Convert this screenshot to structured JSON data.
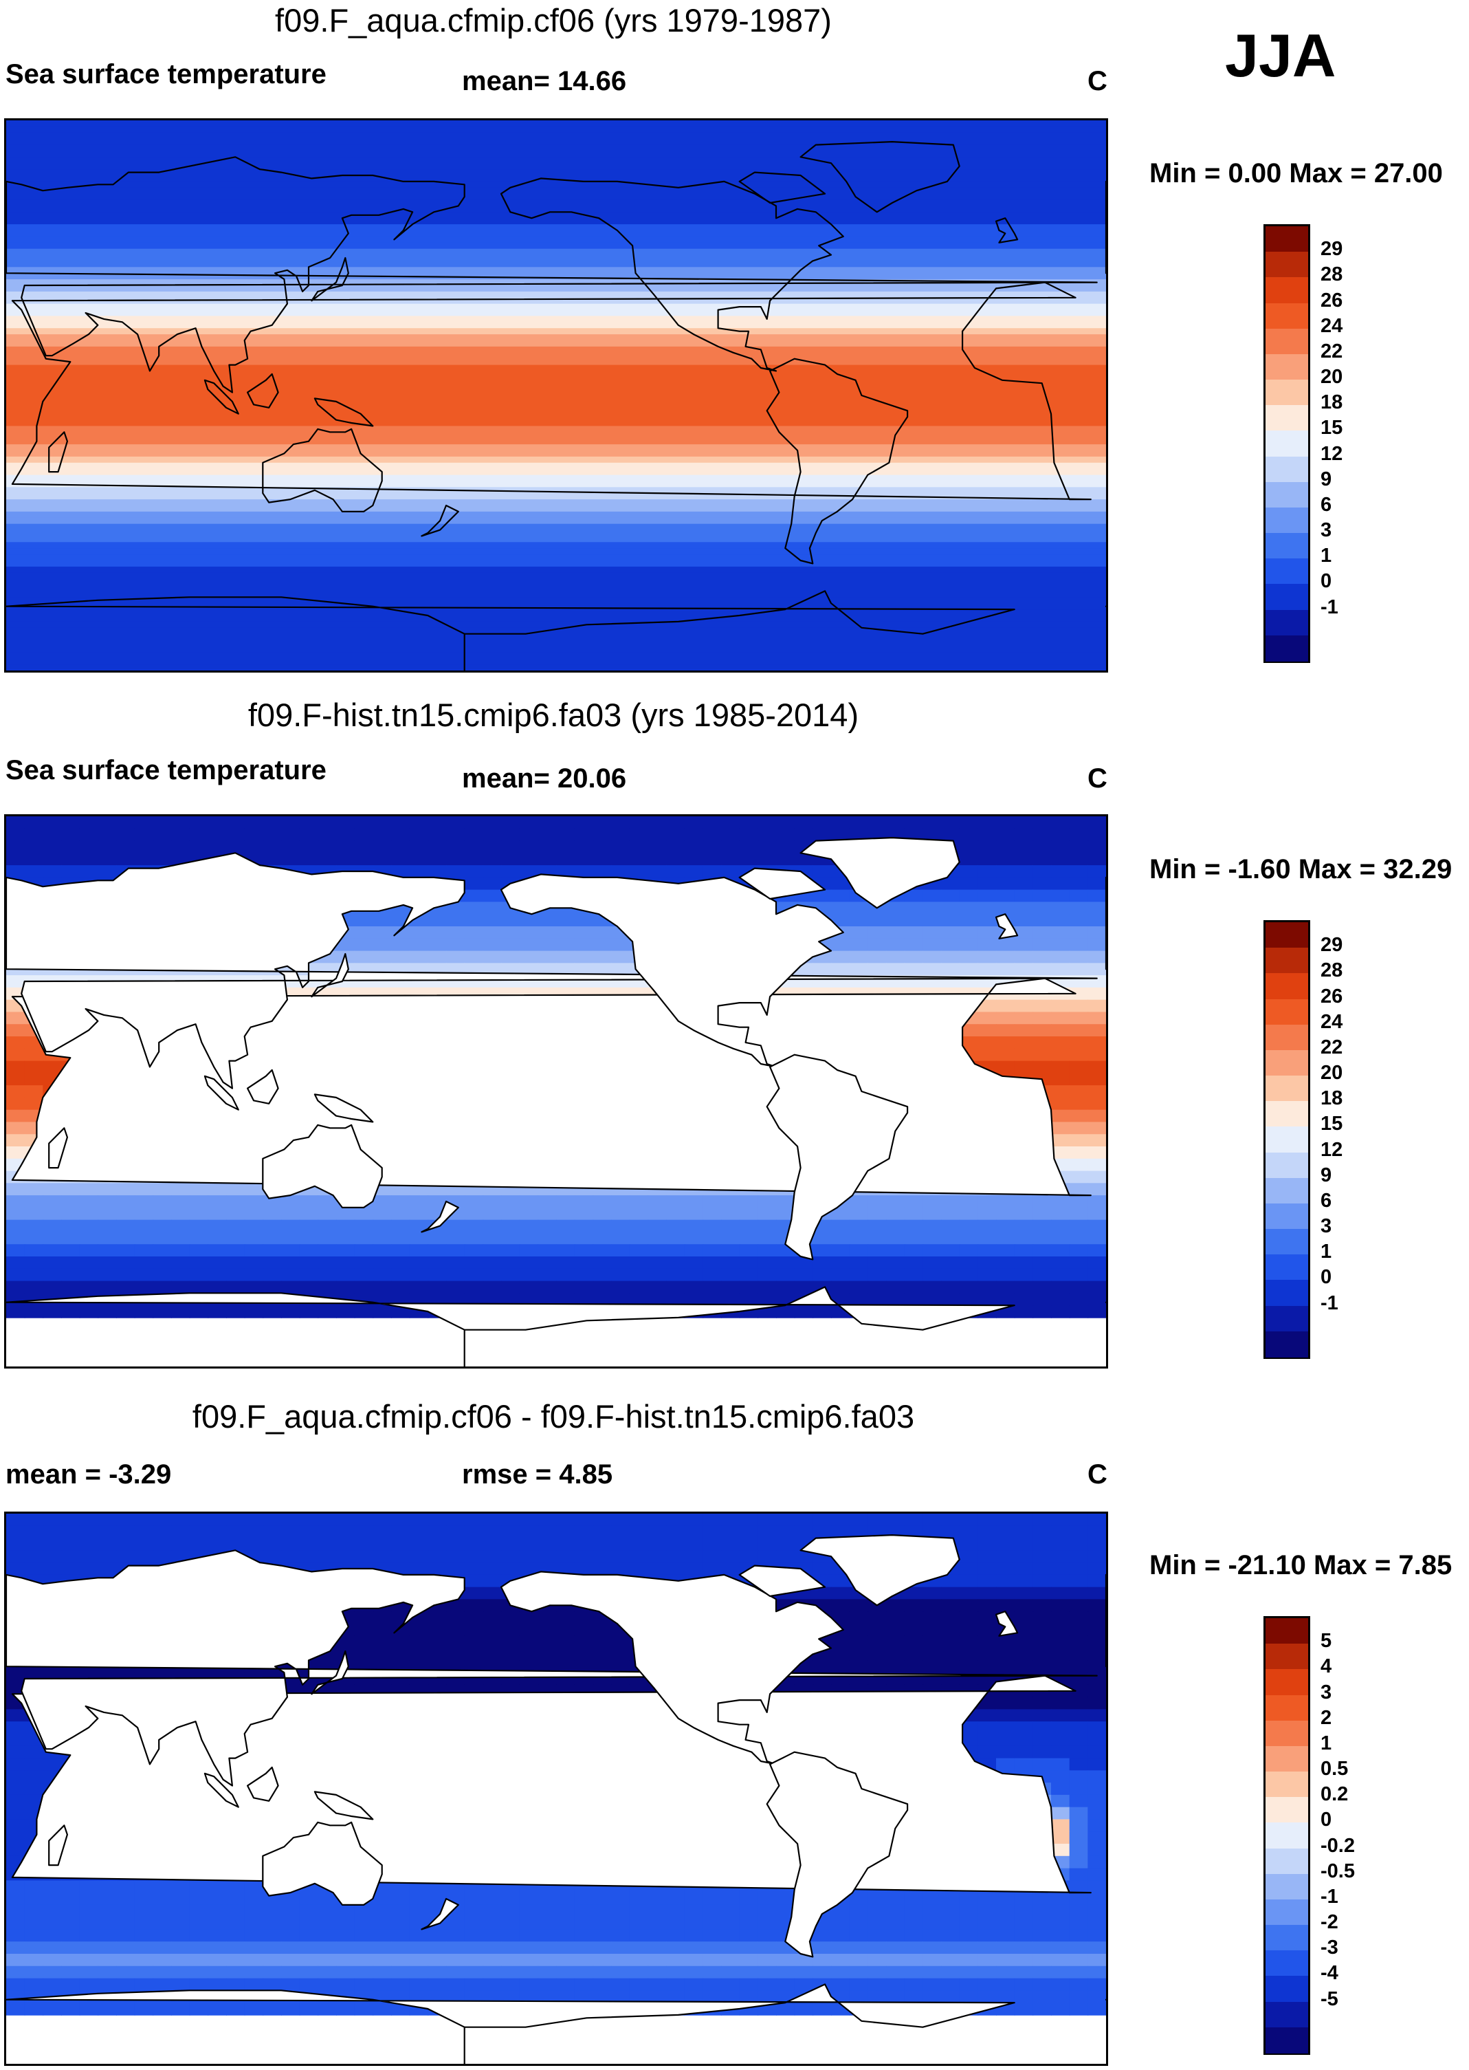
{
  "season": "JJA",
  "colors": {
    "sst_scale": [
      "#08087a",
      "#0a1aa8",
      "#0e35d2",
      "#2155ea",
      "#3e74f0",
      "#6a95f4",
      "#98b6f6",
      "#c4d6f9",
      "#e6eefb",
      "#fdeadc",
      "#fcc7a6",
      "#f9a07a",
      "#f47a4c",
      "#ee5a24",
      "#e04110",
      "#b82a08",
      "#7d0a00"
    ],
    "diff_scale": [
      "#08087a",
      "#0a1aa8",
      "#0e35d2",
      "#2155ea",
      "#3e74f0",
      "#6a95f4",
      "#98b6f6",
      "#c4d6f9",
      "#e6eefb",
      "#fdeadc",
      "#fcc7a6",
      "#f9a07a",
      "#f47a4c",
      "#ee5a24",
      "#e04110",
      "#b82a08",
      "#7d0a00"
    ],
    "land": "#ffffff",
    "coast": "#000000"
  },
  "panels": [
    {
      "title": "f09.F_aqua.cfmip.cf06 (yrs 1979-1987)",
      "left_label": "Sea surface temperature",
      "stat": "mean=  14.66",
      "units": "C",
      "minmax": "Min =   0.00 Max =  27.00",
      "colorbar": {
        "labels": [
          "29",
          "28",
          "26",
          "24",
          "22",
          "20",
          "18",
          "15",
          "12",
          "9",
          "6",
          "3",
          "1",
          "0",
          "-1"
        ]
      },
      "kind": "aqua"
    },
    {
      "title": "f09.F-hist.tn15.cmip6.fa03 (yrs 1985-2014)",
      "left_label": "Sea surface temperature",
      "stat": "mean=  20.06",
      "units": "C",
      "minmax": "Min =  -1.60 Max =  32.29",
      "colorbar": {
        "labels": [
          "29",
          "28",
          "26",
          "24",
          "22",
          "20",
          "18",
          "15",
          "12",
          "9",
          "6",
          "3",
          "1",
          "0",
          "-1"
        ]
      },
      "kind": "hist"
    },
    {
      "title": "f09.F_aqua.cfmip.cf06 - f09.F-hist.tn15.cmip6.fa03",
      "left_label": "mean =  -3.29",
      "stat": "rmse =    4.85",
      "units": "C",
      "minmax": "Min = -21.10 Max =   7.85",
      "colorbar": {
        "labels": [
          "5",
          "4",
          "3",
          "2",
          "1",
          "0.5",
          "0.2",
          "0",
          "-0.2",
          "-0.5",
          "-1",
          "-2",
          "-3",
          "-4",
          "-5"
        ]
      },
      "kind": "diff"
    }
  ]
}
